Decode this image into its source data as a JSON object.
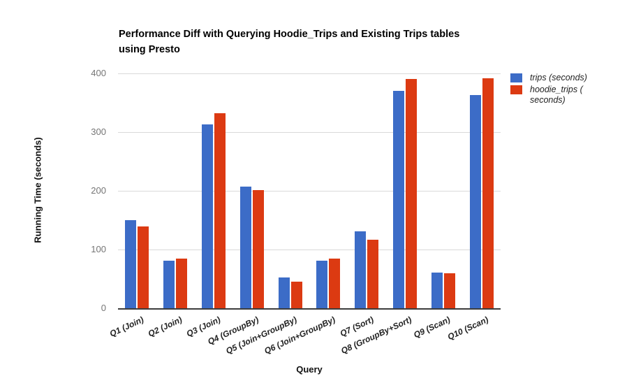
{
  "title_lines": [
    "Performance Diff with Querying Hoodie_Trips and Existing Trips tables",
    "using Presto"
  ],
  "chart_data": {
    "type": "bar",
    "title": "Performance Diff with Querying Hoodie_Trips and Existing Trips tables using Presto",
    "xlabel": "Query",
    "ylabel": "Running Time (seconds)",
    "ylim": [
      0,
      400
    ],
    "y_ticks": [
      0,
      100,
      200,
      300,
      400
    ],
    "grid": true,
    "legend_position": "right",
    "categories": [
      "Q1 (Join)",
      "Q2 (Join)",
      "Q3 (Join)",
      "Q4 (GroupBy)",
      "Q5 (Join+GroupBy)",
      "Q6 (Join+GroupBy)",
      "Q7 (Sort)",
      "Q8 (GroupBy+Sort)",
      "Q9 (Scan)",
      "Q10 (Scan)"
    ],
    "series": [
      {
        "name": "trips (seconds)",
        "color": "#3c6cc7",
        "values": [
          150,
          81,
          313,
          207,
          52,
          81,
          131,
          370,
          61,
          363
        ]
      },
      {
        "name": "hoodie_trips ( seconds)",
        "color": "#dc3a12",
        "values": [
          139,
          84,
          332,
          201,
          45,
          85,
          117,
          390,
          60,
          392
        ]
      }
    ]
  }
}
